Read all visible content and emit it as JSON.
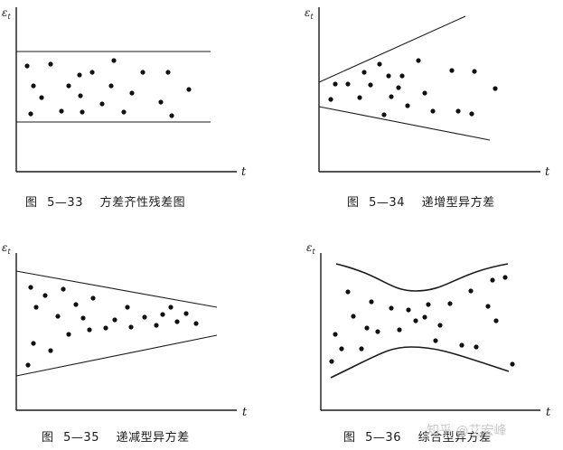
{
  "axis": {
    "y_label": "ε",
    "y_subscript": "t",
    "x_label": "t"
  },
  "figures": [
    {
      "caption_prefix": "图",
      "caption_number": "5—33",
      "caption_title": "方差齐性残差图"
    },
    {
      "caption_prefix": "图",
      "caption_number": "5—34",
      "caption_title": "递增型异方差"
    },
    {
      "caption_prefix": "图",
      "caption_number": "5—35",
      "caption_title": "递减型异方差"
    },
    {
      "caption_prefix": "图",
      "caption_number": "5—36",
      "caption_title": "综合型异方差"
    }
  ],
  "watermark": "知乎 @艾宏峰"
}
